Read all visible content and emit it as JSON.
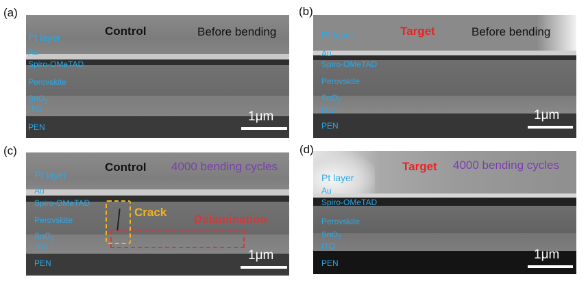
{
  "tags": [
    "(a)",
    "(b)",
    "(c)",
    "(d)"
  ],
  "panels": [
    {
      "heading": "Control",
      "note": "Before bending",
      "layers": {
        "pt": "Pt layer",
        "au": "Au",
        "spiro": "Spiro-OMeTAD",
        "perovskite": "Perovskite",
        "sno2": "SnO",
        "sno2_sub": "2",
        "ito": "ITO",
        "pen": "PEN"
      },
      "scale": "1μm"
    },
    {
      "heading": "Target",
      "note": "Before bending",
      "layers": {
        "pt": "Pt layer",
        "au": "Au",
        "spiro": "Spiro-OMeTAD",
        "perovskite": "Perovskite",
        "sno2": "SnO",
        "sno2_sub": "2",
        "ito": "ITO",
        "pen": "PEN"
      },
      "scale": "1μm"
    },
    {
      "heading": "Control",
      "note": "4000 bending cycles",
      "layers": {
        "pt": "Pt layer",
        "au": "Au",
        "spiro": "Spiro-OMeTAD",
        "perovskite": "Perovskite",
        "sno2": "SnO",
        "sno2_sub": "2",
        "ito": "ITO",
        "pen": "PEN"
      },
      "scale": "1μm",
      "annotations": {
        "crack": "Crack",
        "delamination": "Delamination"
      }
    },
    {
      "heading": "Target",
      "note": "4000 bending cycles",
      "layers": {
        "pt": "Pt layer",
        "au": "Au",
        "spiro": "Spiro-OMeTAD",
        "perovskite": "Perovskite",
        "sno2": "SnO",
        "sno2_sub": "2",
        "ito": "ITO",
        "pen": "PEN"
      },
      "scale": "1μm"
    }
  ],
  "colors": {
    "layer_label": "#2aa9e8",
    "control_heading": "#111111",
    "target_heading": "#ee2222",
    "cycles_note": "#7a3fb0",
    "crack": "#f0b41e",
    "delamination": "#d9363a",
    "scale": "#ffffff"
  }
}
